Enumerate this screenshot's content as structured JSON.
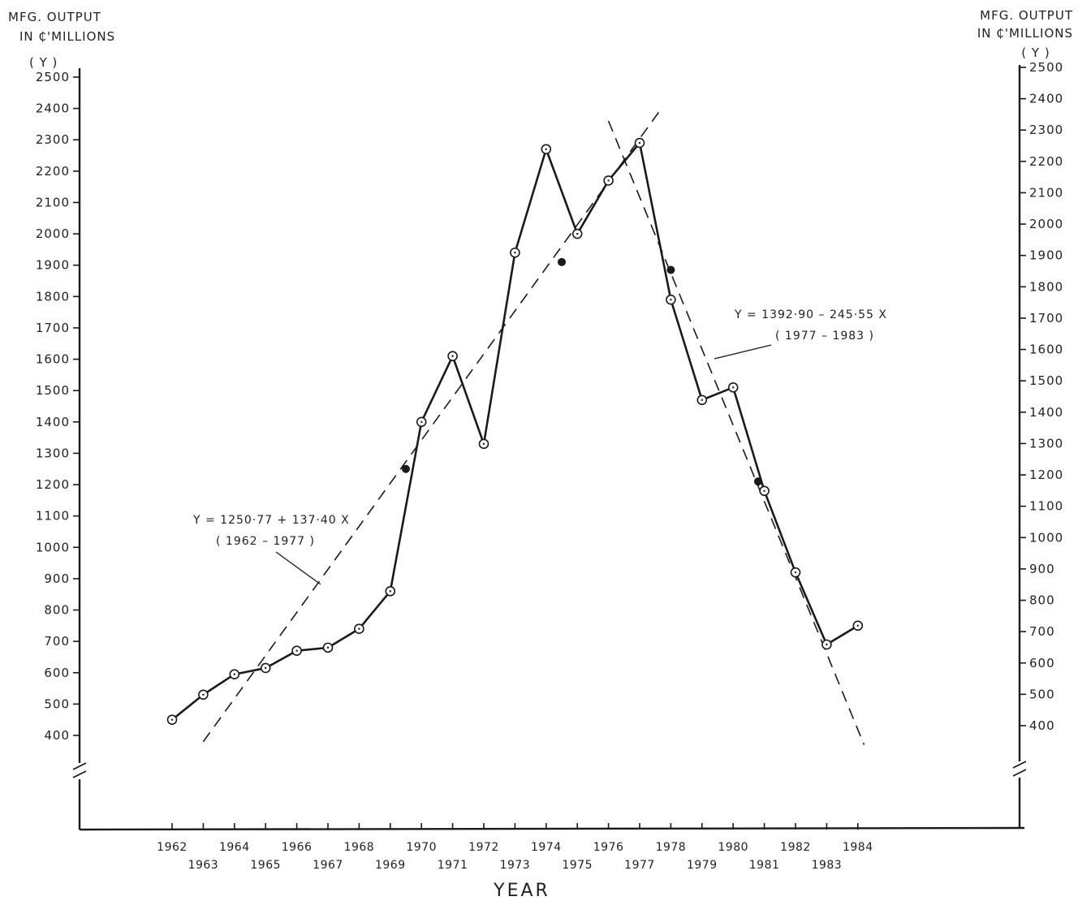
{
  "chart_data": {
    "type": "line",
    "title": "",
    "xlabel": "YEAR",
    "ylabel_left": [
      "MFG. OUTPUT",
      "IN ₵'MILLIONS",
      "( Y )"
    ],
    "ylabel_right": [
      "MFG. OUTPUT",
      "IN ₵'MILLIONS",
      "( Y )"
    ],
    "ylim": [
      400,
      2500
    ],
    "left_ticks": [
      "2500",
      "2400",
      "2300",
      "2200",
      "2100",
      "2000",
      "1900",
      "1800",
      "1700",
      "1600",
      "1500",
      "1400",
      "1300",
      "1200",
      "1100",
      "1000",
      "900",
      "800",
      "700",
      "600",
      "500",
      "400"
    ],
    "right_ticks": [
      "2500",
      "2400",
      "2300",
      "2200",
      "2100",
      "2000",
      "1900",
      "1800",
      "1700",
      "1600",
      "1500",
      "1400",
      "1300",
      "1200",
      "1100",
      "1000",
      "900",
      "800",
      "700",
      "600",
      "500",
      "400"
    ],
    "x_tick_labels": [
      "1962",
      "1963",
      "1964",
      "1965",
      "1966",
      "1967",
      "1968",
      "1969",
      "1970",
      "1971",
      "1972",
      "1973",
      "1974",
      "1975",
      "1976",
      "1977",
      "1978",
      "1979",
      "1980",
      "1981",
      "1982",
      "1983",
      "1984"
    ],
    "series": [
      {
        "x": [
          1962,
          1963,
          1964,
          1965,
          1966,
          1967,
          1968,
          1969,
          1970,
          1971,
          1972,
          1973,
          1974,
          1975,
          1976,
          1977,
          1978,
          1979,
          1980,
          1981,
          1982,
          1983,
          1984
        ],
        "values": [
          450,
          530,
          595,
          615,
          670,
          680,
          740,
          860,
          1400,
          1610,
          1330,
          1940,
          2270,
          2000,
          2170,
          2290,
          1790,
          1470,
          1510,
          1180,
          920,
          690,
          750
        ]
      }
    ],
    "trend_lines": [
      {
        "equation": "Y = 1250·77 + 137·40 X",
        "period": "( 1962 – 1977 )",
        "from": [
          1963,
          380
        ],
        "to": [
          1977.7,
          2400
        ]
      },
      {
        "equation": "Y = 1392·90 – 245·55 X",
        "period": "( 1977 – 1983 )",
        "from": [
          1976,
          2360
        ],
        "to": [
          1984.2,
          370
        ]
      }
    ],
    "trend_points": [
      {
        "x": 1969.5,
        "y": 1250
      },
      {
        "x": 1974.5,
        "y": 1910
      },
      {
        "x": 1978,
        "y": 1885
      },
      {
        "x": 1980.8,
        "y": 1210
      }
    ],
    "grid": false,
    "legend": "none"
  }
}
